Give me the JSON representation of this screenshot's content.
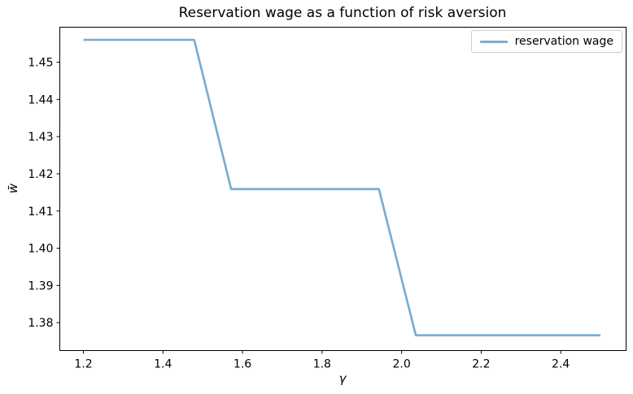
{
  "chart_data": {
    "type": "line",
    "title": "Reservation wage as a function of risk aversion",
    "xlabel": "γ",
    "ylabel": "w̄",
    "xlim": [
      1.1407,
      2.5643
    ],
    "ylim": [
      1.3725,
      1.4594
    ],
    "xticks": [
      1.2,
      1.4,
      1.6,
      1.8,
      2.0,
      2.2,
      2.4
    ],
    "xtick_labels": [
      "1.2",
      "1.4",
      "1.6",
      "1.8",
      "2.0",
      "2.2",
      "2.4"
    ],
    "yticks": [
      1.38,
      1.39,
      1.4,
      1.41,
      1.42,
      1.43,
      1.44,
      1.45
    ],
    "ytick_labels": [
      "1.38",
      "1.39",
      "1.40",
      "1.41",
      "1.42",
      "1.43",
      "1.44",
      "1.45"
    ],
    "grid": false,
    "background_color": "#ffffff",
    "spine_color": "#000000",
    "legend": {
      "position": "upper right",
      "entries": [
        {
          "label": "reservation wage",
          "color": "#7badd2"
        }
      ]
    },
    "series": [
      {
        "name": "reservation wage",
        "color": "#7badd2",
        "line_width": 2.7,
        "x": [
          1.2,
          1.2929,
          1.3857,
          1.4786,
          1.5714,
          1.6643,
          1.7571,
          1.85,
          1.9429,
          2.0357,
          2.1286,
          2.2214,
          2.3143,
          2.4071,
          2.5
        ],
        "y": [
          1.456,
          1.456,
          1.456,
          1.456,
          1.4159,
          1.4159,
          1.4159,
          1.4159,
          1.4159,
          1.3766,
          1.3766,
          1.3766,
          1.3766,
          1.3766,
          1.3766
        ]
      }
    ]
  }
}
